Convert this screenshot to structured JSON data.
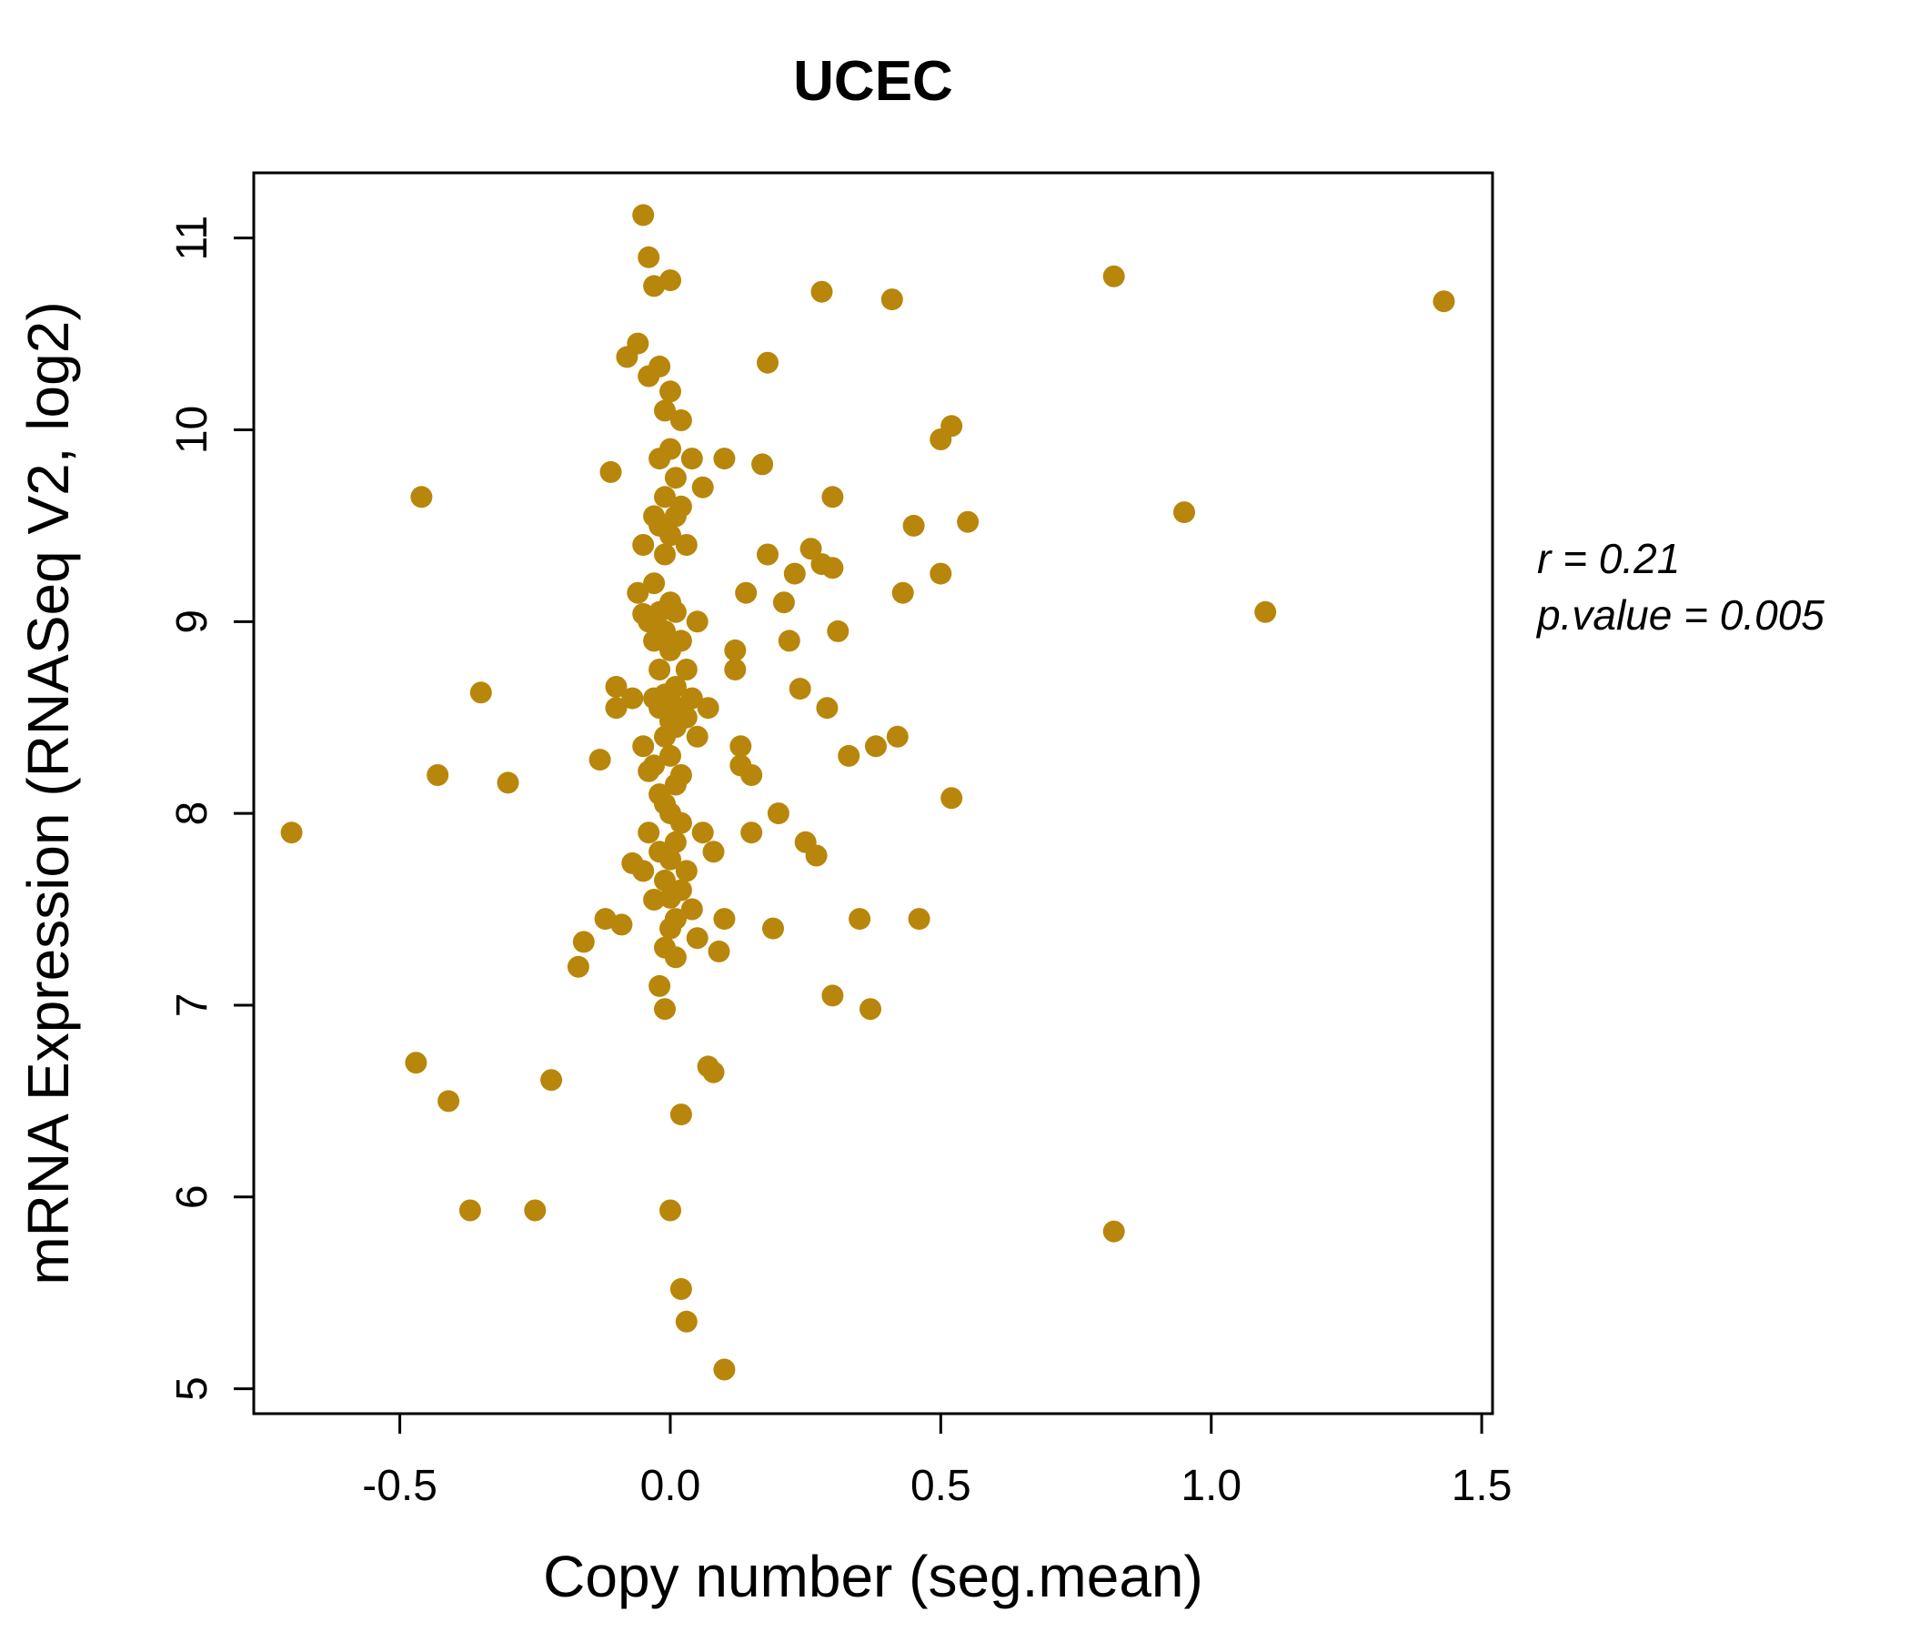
{
  "figure": {
    "title": "UCEC",
    "title_color": "#B8860B"
  },
  "chart_data": {
    "type": "scatter",
    "title": "UCEC",
    "xlabel": "Copy number (seg.mean)",
    "ylabel": "mRNA Expression (RNASeq V2, log2)",
    "xlim": [
      -0.77,
      1.52
    ],
    "ylim": [
      4.87,
      11.34
    ],
    "x_ticks": [
      -0.5,
      0.0,
      0.5,
      1.0,
      1.5
    ],
    "x_tick_labels": [
      "-0.5",
      "0.0",
      "0.5",
      "1.0",
      "1.5"
    ],
    "y_ticks": [
      5,
      6,
      7,
      8,
      9,
      10,
      11
    ],
    "y_tick_labels": [
      "5",
      "6",
      "7",
      "8",
      "9",
      "10",
      "11"
    ],
    "grid": false,
    "legend": "none",
    "point_color": "#B8860B",
    "annotations": [
      "r = 0.21",
      "p.value = 0.005"
    ],
    "points": [
      [
        -0.7,
        7.9
      ],
      [
        -0.47,
        6.7
      ],
      [
        -0.46,
        9.65
      ],
      [
        -0.43,
        8.2
      ],
      [
        -0.41,
        6.5
      ],
      [
        -0.37,
        5.93
      ],
      [
        -0.35,
        8.63
      ],
      [
        -0.3,
        8.16
      ],
      [
        -0.25,
        5.93
      ],
      [
        -0.22,
        6.61
      ],
      [
        -0.17,
        7.2
      ],
      [
        -0.16,
        7.33
      ],
      [
        -0.13,
        8.28
      ],
      [
        -0.12,
        7.45
      ],
      [
        -0.11,
        9.78
      ],
      [
        -0.1,
        8.66
      ],
      [
        -0.1,
        8.55
      ],
      [
        -0.09,
        7.42
      ],
      [
        -0.08,
        10.38
      ],
      [
        -0.07,
        8.6
      ],
      [
        -0.07,
        7.74
      ],
      [
        -0.06,
        10.45
      ],
      [
        -0.06,
        9.15
      ],
      [
        -0.05,
        11.12
      ],
      [
        -0.05,
        9.4
      ],
      [
        -0.05,
        9.04
      ],
      [
        -0.05,
        8.35
      ],
      [
        -0.05,
        7.7
      ],
      [
        -0.04,
        10.9
      ],
      [
        -0.04,
        10.28
      ],
      [
        -0.04,
        9.0
      ],
      [
        -0.04,
        8.22
      ],
      [
        -0.04,
        7.9
      ],
      [
        -0.03,
        10.75
      ],
      [
        -0.03,
        9.55
      ],
      [
        -0.03,
        9.2
      ],
      [
        -0.03,
        8.9
      ],
      [
        -0.03,
        8.6
      ],
      [
        -0.03,
        8.25
      ],
      [
        -0.03,
        7.55
      ],
      [
        -0.02,
        10.33
      ],
      [
        -0.02,
        9.85
      ],
      [
        -0.02,
        9.5
      ],
      [
        -0.02,
        9.05
      ],
      [
        -0.02,
        8.75
      ],
      [
        -0.02,
        8.55
      ],
      [
        -0.02,
        8.1
      ],
      [
        -0.02,
        7.8
      ],
      [
        -0.02,
        7.1
      ],
      [
        -0.01,
        10.1
      ],
      [
        -0.01,
        9.65
      ],
      [
        -0.01,
        9.35
      ],
      [
        -0.01,
        8.95
      ],
      [
        -0.01,
        8.62
      ],
      [
        -0.01,
        8.4
      ],
      [
        -0.01,
        8.05
      ],
      [
        -0.01,
        7.65
      ],
      [
        -0.01,
        7.3
      ],
      [
        -0.01,
        6.98
      ],
      [
        0.0,
        10.78
      ],
      [
        0.0,
        10.2
      ],
      [
        0.0,
        9.9
      ],
      [
        0.0,
        9.45
      ],
      [
        0.0,
        9.1
      ],
      [
        0.0,
        8.85
      ],
      [
        0.0,
        8.58
      ],
      [
        0.0,
        8.48
      ],
      [
        0.0,
        8.3
      ],
      [
        0.0,
        8.0
      ],
      [
        0.0,
        7.76
      ],
      [
        0.0,
        7.56
      ],
      [
        0.0,
        7.4
      ],
      [
        0.0,
        5.93
      ],
      [
        0.01,
        9.75
      ],
      [
        0.01,
        9.55
      ],
      [
        0.01,
        9.05
      ],
      [
        0.01,
        8.66
      ],
      [
        0.01,
        8.45
      ],
      [
        0.01,
        8.15
      ],
      [
        0.01,
        7.85
      ],
      [
        0.01,
        7.45
      ],
      [
        0.01,
        7.25
      ],
      [
        0.02,
        10.05
      ],
      [
        0.02,
        9.6
      ],
      [
        0.02,
        8.9
      ],
      [
        0.02,
        8.55
      ],
      [
        0.02,
        8.2
      ],
      [
        0.02,
        7.95
      ],
      [
        0.02,
        7.6
      ],
      [
        0.02,
        6.43
      ],
      [
        0.02,
        5.52
      ],
      [
        0.03,
        9.4
      ],
      [
        0.03,
        8.75
      ],
      [
        0.03,
        8.5
      ],
      [
        0.03,
        7.7
      ],
      [
        0.03,
        5.35
      ],
      [
        0.04,
        9.85
      ],
      [
        0.04,
        8.6
      ],
      [
        0.04,
        7.5
      ],
      [
        0.05,
        9.0
      ],
      [
        0.05,
        8.4
      ],
      [
        0.05,
        7.35
      ],
      [
        0.06,
        9.7
      ],
      [
        0.06,
        7.9
      ],
      [
        0.07,
        8.55
      ],
      [
        0.07,
        6.68
      ],
      [
        0.08,
        7.8
      ],
      [
        0.08,
        6.65
      ],
      [
        0.09,
        7.28
      ],
      [
        0.1,
        9.85
      ],
      [
        0.1,
        7.45
      ],
      [
        0.1,
        5.1
      ],
      [
        0.12,
        8.85
      ],
      [
        0.12,
        8.75
      ],
      [
        0.13,
        8.35
      ],
      [
        0.13,
        8.25
      ],
      [
        0.14,
        9.15
      ],
      [
        0.15,
        8.2
      ],
      [
        0.15,
        7.9
      ],
      [
        0.17,
        9.82
      ],
      [
        0.18,
        10.35
      ],
      [
        0.18,
        9.35
      ],
      [
        0.19,
        7.4
      ],
      [
        0.2,
        8.0
      ],
      [
        0.21,
        9.1
      ],
      [
        0.22,
        8.9
      ],
      [
        0.23,
        9.25
      ],
      [
        0.24,
        8.65
      ],
      [
        0.25,
        7.85
      ],
      [
        0.26,
        9.38
      ],
      [
        0.27,
        7.78
      ],
      [
        0.28,
        10.72
      ],
      [
        0.28,
        9.3
      ],
      [
        0.29,
        8.55
      ],
      [
        0.3,
        9.65
      ],
      [
        0.3,
        9.28
      ],
      [
        0.3,
        7.05
      ],
      [
        0.31,
        8.95
      ],
      [
        0.33,
        8.3
      ],
      [
        0.35,
        7.45
      ],
      [
        0.37,
        6.98
      ],
      [
        0.38,
        8.35
      ],
      [
        0.41,
        10.68
      ],
      [
        0.42,
        8.4
      ],
      [
        0.43,
        9.15
      ],
      [
        0.45,
        9.5
      ],
      [
        0.46,
        7.45
      ],
      [
        0.5,
        9.95
      ],
      [
        0.5,
        9.25
      ],
      [
        0.52,
        10.02
      ],
      [
        0.52,
        8.08
      ],
      [
        0.55,
        9.52
      ],
      [
        0.82,
        10.8
      ],
      [
        0.82,
        5.82
      ],
      [
        0.95,
        9.57
      ],
      [
        1.1,
        9.05
      ],
      [
        1.43,
        10.67
      ]
    ]
  }
}
